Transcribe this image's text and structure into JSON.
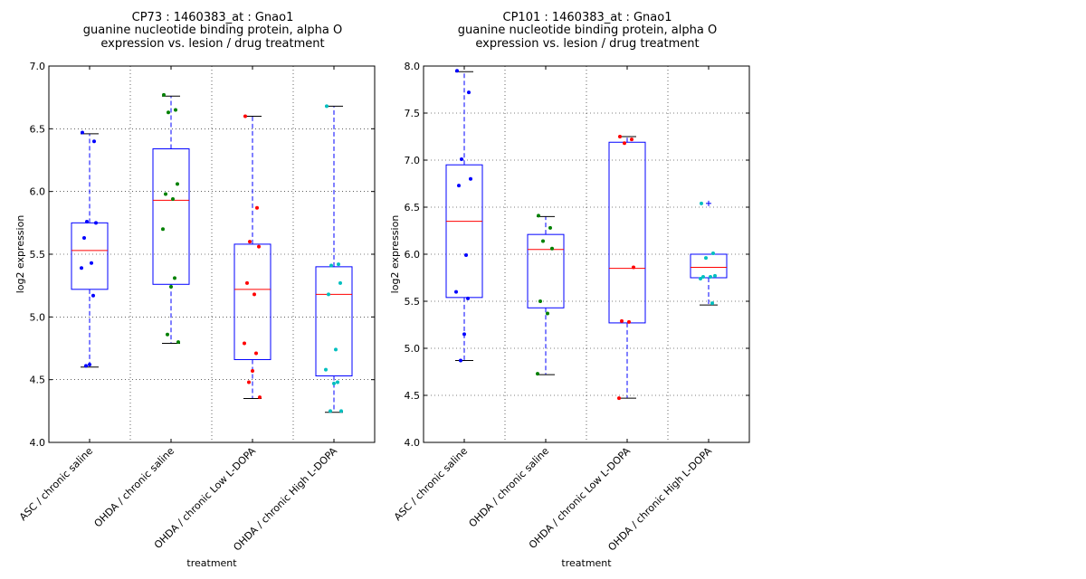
{
  "chart_data": [
    {
      "type": "box",
      "title": [
        "CP73 : 1460383_at : Gnao1",
        "guanine nucleotide binding protein, alpha O",
        "expression vs. lesion / drug treatment"
      ],
      "xlabel": "treatment",
      "ylabel": "log2 expression",
      "ylim": [
        4.0,
        7.0
      ],
      "yticks": [
        "4.0",
        "4.5",
        "5.0",
        "5.5",
        "6.0",
        "6.5",
        "7.0"
      ],
      "grid": true,
      "categories": [
        "ASC / chronic saline",
        "OHDA / chronic saline",
        "OHDA / chronic Low L-DOPA",
        "OHDA / chronic High L-DOPA"
      ],
      "colors": [
        "#0000ff",
        "#008000",
        "#ff0000",
        "#00bfbf"
      ],
      "boxes": [
        {
          "q1": 5.22,
          "median": 5.53,
          "q3": 5.75,
          "whisker_low": 4.6,
          "whisker_high": 6.46,
          "fliers": []
        },
        {
          "q1": 5.26,
          "median": 5.93,
          "q3": 6.34,
          "whisker_low": 4.79,
          "whisker_high": 6.76,
          "fliers": []
        },
        {
          "q1": 4.66,
          "median": 5.22,
          "q3": 5.58,
          "whisker_low": 4.35,
          "whisker_high": 6.6,
          "fliers": []
        },
        {
          "q1": 4.53,
          "median": 5.18,
          "q3": 5.4,
          "whisker_low": 4.24,
          "whisker_high": 6.68,
          "fliers": []
        }
      ],
      "points": [
        [
          6.47,
          6.4,
          5.76,
          5.75,
          5.63,
          5.43,
          5.39,
          5.17,
          4.62,
          4.61
        ],
        [
          6.77,
          6.65,
          6.63,
          6.06,
          5.98,
          5.94,
          5.7,
          5.31,
          5.24,
          4.86,
          4.8
        ],
        [
          6.6,
          5.87,
          5.6,
          5.56,
          5.27,
          5.18,
          4.79,
          4.71,
          4.57,
          4.48,
          4.36
        ],
        [
          6.68,
          5.42,
          5.41,
          5.27,
          5.18,
          4.74,
          4.58,
          4.48,
          4.47,
          4.25,
          4.25
        ]
      ]
    },
    {
      "type": "box",
      "title": [
        "CP101 : 1460383_at : Gnao1",
        "guanine nucleotide binding protein, alpha O",
        "expression vs. lesion / drug treatment"
      ],
      "xlabel": "treatment",
      "ylabel": "log2 expression",
      "ylim": [
        4.0,
        8.0
      ],
      "yticks": [
        "4.0",
        "4.5",
        "5.0",
        "5.5",
        "6.0",
        "6.5",
        "7.0",
        "7.5",
        "8.0"
      ],
      "grid": true,
      "categories": [
        "ASC / chronic saline",
        "OHDA / chronic saline",
        "OHDA / chronic Low L-DOPA",
        "OHDA / chronic High L-DOPA"
      ],
      "colors": [
        "#0000ff",
        "#008000",
        "#ff0000",
        "#00bfbf"
      ],
      "boxes": [
        {
          "q1": 5.54,
          "median": 6.35,
          "q3": 6.95,
          "whisker_low": 4.87,
          "whisker_high": 7.94,
          "fliers": []
        },
        {
          "q1": 5.43,
          "median": 6.05,
          "q3": 6.21,
          "whisker_low": 4.72,
          "whisker_high": 6.4,
          "fliers": []
        },
        {
          "q1": 5.27,
          "median": 5.85,
          "q3": 7.19,
          "whisker_low": 4.47,
          "whisker_high": 7.25,
          "fliers": []
        },
        {
          "q1": 5.75,
          "median": 5.86,
          "q3": 6.0,
          "whisker_low": 5.46,
          "whisker_high": 6.0,
          "fliers": [
            6.54
          ]
        }
      ],
      "points": [
        [
          7.95,
          7.72,
          7.01,
          6.8,
          6.73,
          5.99,
          5.6,
          5.53,
          5.15,
          4.87
        ],
        [
          6.41,
          6.28,
          6.14,
          6.06,
          5.5,
          5.37,
          4.73
        ],
        [
          7.25,
          7.22,
          7.18,
          5.86,
          5.29,
          5.28,
          4.47
        ],
        [
          6.54,
          6.01,
          5.96,
          5.77,
          5.76,
          5.76,
          5.74,
          5.48
        ]
      ]
    }
  ]
}
